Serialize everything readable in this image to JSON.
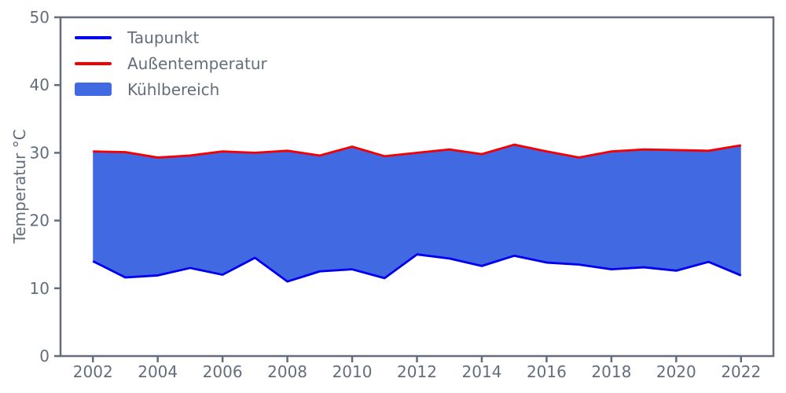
{
  "colors": {
    "axis": "#636d7c",
    "text": "#636d7c",
    "background": "#ffffff"
  },
  "chart_data": {
    "type": "area",
    "title": "",
    "xlabel": "",
    "ylabel": "Temperatur °C",
    "grid": false,
    "legend_position": "upper-left",
    "xlim": [
      2001,
      2023
    ],
    "ylim": [
      0,
      50
    ],
    "xticks": [
      2002,
      2004,
      2006,
      2008,
      2010,
      2012,
      2014,
      2016,
      2018,
      2020,
      2022
    ],
    "yticks": [
      0,
      10,
      20,
      30,
      40,
      50
    ],
    "x": [
      2002,
      2003,
      2004,
      2005,
      2006,
      2007,
      2008,
      2009,
      2010,
      2011,
      2012,
      2013,
      2014,
      2015,
      2016,
      2017,
      2018,
      2019,
      2020,
      2021,
      2022
    ],
    "series": [
      {
        "name": "Taupunkt",
        "color": "#0000ee",
        "line_width": 2.8,
        "values": [
          14.0,
          11.6,
          11.9,
          13.0,
          12.0,
          14.5,
          11.0,
          12.5,
          12.8,
          11.5,
          15.0,
          14.4,
          13.3,
          14.8,
          13.8,
          13.5,
          12.8,
          13.1,
          12.6,
          13.9,
          11.9
        ]
      },
      {
        "name": "Außentemperatur",
        "color": "#f40000",
        "line_width": 2.8,
        "values": [
          30.2,
          30.1,
          29.3,
          29.6,
          30.2,
          30.0,
          30.3,
          29.6,
          30.9,
          29.5,
          30.0,
          30.5,
          29.8,
          31.2,
          30.2,
          29.3,
          30.2,
          30.5,
          30.4,
          30.3,
          31.1
        ]
      }
    ],
    "fill": {
      "name": "Kühlbereich",
      "color": "#4169e1",
      "between": [
        "Taupunkt",
        "Außentemperatur"
      ]
    }
  }
}
